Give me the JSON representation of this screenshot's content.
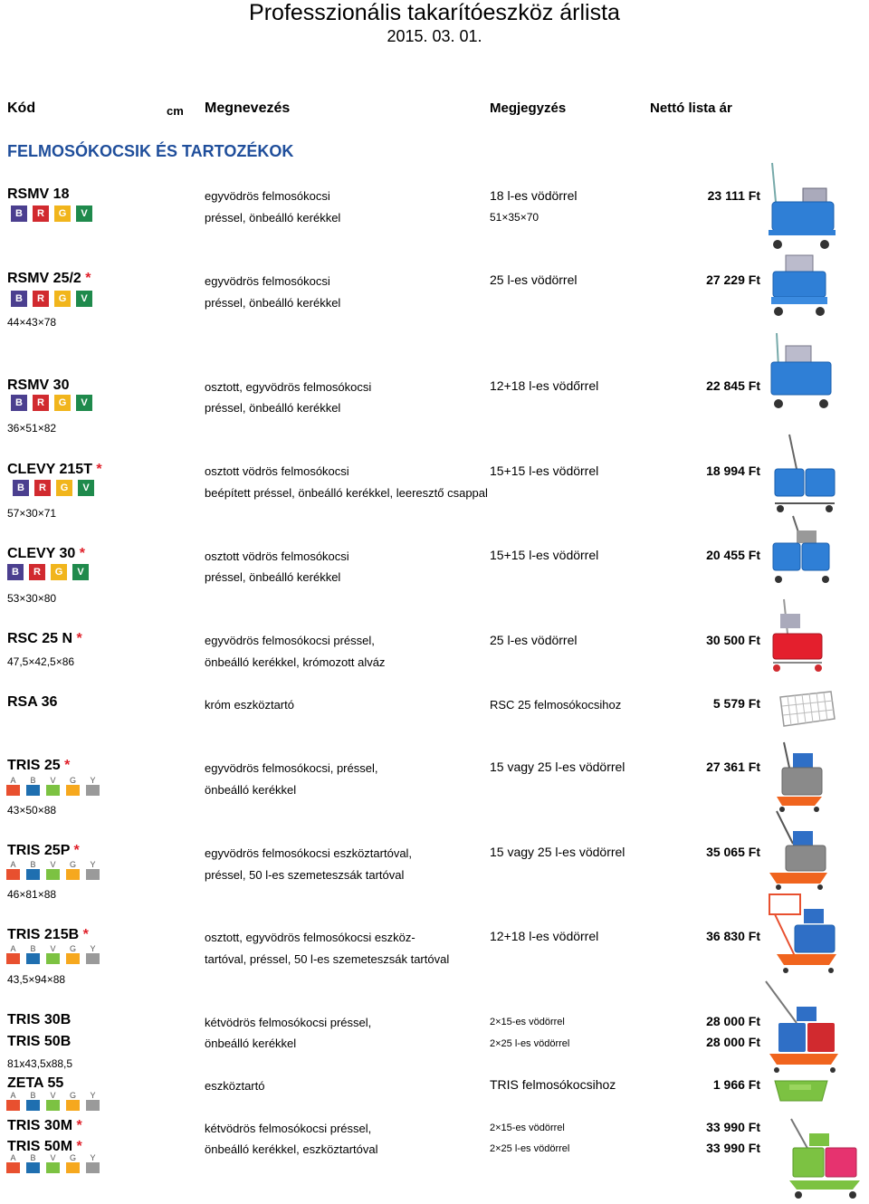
{
  "header": {
    "title": "Professzionális takarítóeszköz árlista",
    "date": "2015. 03. 01."
  },
  "columns": {
    "code": "Kód",
    "cm": "cm",
    "name": "Megnevezés",
    "note": "Megjegyzés",
    "price": "Nettó lista ár"
  },
  "section": "FELMOSÓKOCSIK ÉS TARTOZÉKOK",
  "badge_set_brgv": [
    {
      "letter": "B",
      "color": "#4b3f8f"
    },
    {
      "letter": "R",
      "color": "#d12a2f"
    },
    {
      "letter": "G",
      "color": "#f1b51c"
    },
    {
      "letter": "V",
      "color": "#1f8a4c"
    }
  ],
  "badge_set_abvgy": [
    {
      "letter": "A",
      "color": "#e8502f"
    },
    {
      "letter": "B",
      "color": "#1f6fb0"
    },
    {
      "letter": "V",
      "color": "#7cc242"
    },
    {
      "letter": "G",
      "color": "#f6a81e"
    },
    {
      "letter": "Y",
      "color": "#9a9a9a"
    }
  ],
  "products": {
    "rsmv18": {
      "code": "RSMV 18",
      "star": "",
      "desc1": "egyvödrös felmosókocsi",
      "desc2": "préssel, önbeálló kerékkel",
      "note": "18 l-es vödörrel",
      "note2": "51×35×70",
      "price": "23 111 Ft",
      "dim": "",
      "image": "blue-mop-trolley"
    },
    "rsmv25": {
      "code": "RSMV 25/2",
      "star": "*",
      "desc1": "egyvödrös felmosókocsi",
      "desc2": "préssel, önbeálló kerékkel",
      "note": "25 l-es vödörrel",
      "price": "27 229 Ft",
      "dim": "44×43×78",
      "image": "blue-mop-trolley"
    },
    "rsmv30": {
      "code": "RSMV 30",
      "star": "",
      "desc1": "osztott, egyvödrös felmosókocsi",
      "desc2": "préssel, önbeálló kerékkel",
      "note": "12+18 l-es vödőrrel",
      "price": "22 845 Ft",
      "dim": "36×51×82",
      "image": "blue-mop-trolley"
    },
    "clevy215": {
      "code": "CLEVY 215T",
      "star": "*",
      "desc1": "osztott vödrös felmosókocsi",
      "desc2": "beépített préssel, önbeálló kerékkel, leeresztő csappal",
      "note": "15+15 l-es vödörrel",
      "price": "18 994 Ft",
      "dim": "57×30×71",
      "image": "blue-double-trolley"
    },
    "clevy30": {
      "code": "CLEVY 30",
      "star": "*",
      "desc1": "osztott vödrös felmosókocsi",
      "desc2": "préssel, önbeálló kerékkel",
      "note": "15+15 l-es vödörrel",
      "price": "20 455 Ft",
      "dim": "53×30×80",
      "image": "blue-double-trolley"
    },
    "rsc25": {
      "code": "RSC 25 N",
      "star": "*",
      "desc1": "egyvödrös felmosókocsi préssel,",
      "desc2": "önbeálló kerékkel, krómozott alváz",
      "note": "25 l-es vödörrel",
      "price": "30 500 Ft",
      "dim": "47,5×42,5×86",
      "image": "red-mop-trolley"
    },
    "rsa36": {
      "code": "RSA 36",
      "star": "",
      "desc1": "króm eszköztartó",
      "note": "RSC 25 felmosókocsihoz",
      "price": "5 579 Ft",
      "image": "wire-basket"
    },
    "tris25": {
      "code": "TRIS 25",
      "star": "*",
      "desc1": "egyvödrös felmosókocsi, préssel,",
      "desc2": "önbeálló kerékkel",
      "note": "15 vagy 25 l-es vödörrel",
      "price": "27 361 Ft",
      "dim": "43×50×88",
      "image": "grey-orange-trolley"
    },
    "tris25p": {
      "code": "TRIS 25P",
      "star": "*",
      "desc1": "egyvödrös felmosókocsi eszköztartóval,",
      "desc2": "préssel, 50 l-es  szemeteszsák tartóval",
      "note": "15 vagy 25 l-es vödörrel",
      "price": "35 065 Ft",
      "dim": "46×81×88",
      "image": "grey-orange-trolley"
    },
    "tris215b": {
      "code": "TRIS 215B",
      "star": "*",
      "desc1": "osztott, egyvödrös felmosókocsi eszköz-",
      "desc2": "tartóval, préssel, 50 l-es  szemeteszsák tartóval",
      "note": "12+18 l-es vödörrel",
      "price": "36 830 Ft",
      "dim": "43,5×94×88",
      "image": "orange-blue-trolley"
    },
    "tris30b": {
      "code": "TRIS 30B",
      "desc1": "kétvödrös felmosókocsi préssel,",
      "note": "2×15-es vödörrel",
      "price": "28 000 Ft"
    },
    "tris50b": {
      "code": "TRIS 50B",
      "desc1": "önbeálló kerékkel",
      "note": "2×25 l-es vödörrel",
      "price": "28 000 Ft",
      "dim": "81x43,5x88,5"
    },
    "zeta55": {
      "code": "ZETA 55",
      "desc1": "eszköztartó",
      "note": "TRIS felmosókocsihoz",
      "price": "1 966 Ft",
      "image": "green-tray"
    },
    "tris30m": {
      "code": "TRIS 30M",
      "star": "*",
      "desc1": "kétvödrös felmosókocsi préssel,",
      "note": "2×15-es vödörrel",
      "price": "33 990 Ft"
    },
    "tris50m": {
      "code": "TRIS 50M",
      "star": "*",
      "desc1": "önbeálló kerékkel, eszköztartóval",
      "note": "2×25 l-es vödörrel",
      "price": "33 990 Ft",
      "image": "green-pink-trolley"
    }
  }
}
